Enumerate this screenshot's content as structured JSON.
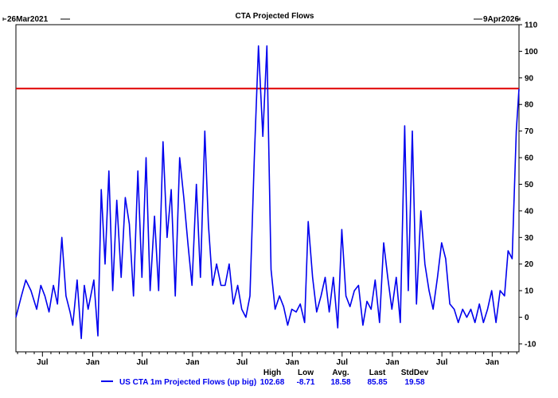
{
  "chart_data": {
    "type": "line",
    "title": "CTA Projected Flows",
    "date_start_label": "26Mar2021",
    "date_end_label": "9Apr2026",
    "x_tick_labels": [
      "Jul",
      "Jan",
      "Jul",
      "Jan",
      "Jul",
      "Jan",
      "Jul",
      "Jan",
      "Jul",
      "Jan"
    ],
    "y_ticks": [
      110,
      100,
      90,
      80,
      70,
      60,
      50,
      40,
      30,
      20,
      10,
      0,
      -10
    ],
    "ylim": [
      -13,
      110
    ],
    "x_range": [
      "2021-03-26",
      "2026-04-09"
    ],
    "reference_line": {
      "value": 86,
      "color": "#e00000"
    },
    "series": [
      {
        "name": "US CTA 1m Projected Flows (up big)",
        "color": "#0000ee",
        "x": [
          "2021-03-26",
          "2021-04-15",
          "2021-05-01",
          "2021-05-20",
          "2021-06-10",
          "2021-06-25",
          "2021-07-10",
          "2021-07-25",
          "2021-08-10",
          "2021-08-25",
          "2021-09-10",
          "2021-09-25",
          "2021-10-10",
          "2021-10-20",
          "2021-11-05",
          "2021-11-20",
          "2021-12-01",
          "2021-12-15",
          "2022-01-05",
          "2022-01-20",
          "2022-02-01",
          "2022-02-15",
          "2022-03-01",
          "2022-03-15",
          "2022-03-30",
          "2022-04-15",
          "2022-04-30",
          "2022-05-15",
          "2022-05-30",
          "2022-06-15",
          "2022-06-30",
          "2022-07-15",
          "2022-07-30",
          "2022-08-15",
          "2022-08-30",
          "2022-09-15",
          "2022-09-30",
          "2022-10-15",
          "2022-10-30",
          "2022-11-15",
          "2022-11-30",
          "2022-12-15",
          "2022-12-30",
          "2023-01-15",
          "2023-01-30",
          "2023-02-15",
          "2023-02-28",
          "2023-03-15",
          "2023-03-30",
          "2023-04-15",
          "2023-04-30",
          "2023-05-15",
          "2023-05-30",
          "2023-06-15",
          "2023-06-30",
          "2023-07-15",
          "2023-07-30",
          "2023-08-15",
          "2023-08-30",
          "2023-09-15",
          "2023-09-30",
          "2023-10-15",
          "2023-10-30",
          "2023-11-15",
          "2023-11-30",
          "2023-12-15",
          "2023-12-30",
          "2024-01-15",
          "2024-01-30",
          "2024-02-15",
          "2024-02-28",
          "2024-03-15",
          "2024-03-30",
          "2024-04-15",
          "2024-04-30",
          "2024-05-15",
          "2024-05-30",
          "2024-06-15",
          "2024-06-30",
          "2024-07-15",
          "2024-07-30",
          "2024-08-15",
          "2024-08-30",
          "2024-09-15",
          "2024-09-30",
          "2024-10-15",
          "2024-10-30",
          "2024-11-15",
          "2024-11-30",
          "2024-12-15",
          "2024-12-30",
          "2025-01-15",
          "2025-01-30",
          "2025-02-15",
          "2025-02-28",
          "2025-03-15",
          "2025-03-30",
          "2025-04-15",
          "2025-04-30",
          "2025-05-15",
          "2025-05-30",
          "2025-06-15",
          "2025-06-30",
          "2025-07-15",
          "2025-07-30",
          "2025-08-15",
          "2025-08-30",
          "2025-09-15",
          "2025-09-30",
          "2025-10-15",
          "2025-10-30",
          "2025-11-15",
          "2025-11-30",
          "2025-12-15",
          "2025-12-30",
          "2026-01-15",
          "2026-01-30",
          "2026-02-15",
          "2026-02-28",
          "2026-03-15",
          "2026-03-30",
          "2026-04-09"
        ],
        "values": [
          0,
          8,
          14,
          10,
          3,
          12,
          8,
          2,
          12,
          5,
          30,
          8,
          2,
          -3,
          14,
          -8,
          12,
          3,
          14,
          -7,
          48,
          20,
          55,
          10,
          44,
          15,
          45,
          35,
          8,
          55,
          15,
          60,
          10,
          38,
          10,
          66,
          30,
          48,
          8,
          60,
          45,
          28,
          12,
          50,
          15,
          70,
          35,
          12,
          20,
          12,
          12,
          20,
          5,
          12,
          3,
          0,
          8,
          60,
          102,
          68,
          102,
          18,
          3,
          8,
          4,
          -3,
          3,
          2,
          5,
          -2,
          36,
          15,
          2,
          8,
          15,
          2,
          15,
          -4,
          33,
          8,
          4,
          10,
          12,
          -3,
          6,
          3,
          14,
          -2,
          28,
          15,
          3,
          15,
          -2,
          72,
          10,
          70,
          5,
          40,
          20,
          10,
          3,
          15,
          28,
          22,
          5,
          3,
          -2,
          3,
          0,
          3,
          -2,
          5,
          -2,
          3,
          10,
          -2,
          10,
          8,
          25,
          22,
          70,
          85.85
        ]
      }
    ],
    "stats": {
      "headers": [
        "High",
        "Low",
        "Avg.",
        "Last",
        "StdDev"
      ],
      "values": [
        "102.68",
        "-8.71",
        "18.58",
        "85.85",
        "19.58"
      ]
    }
  }
}
